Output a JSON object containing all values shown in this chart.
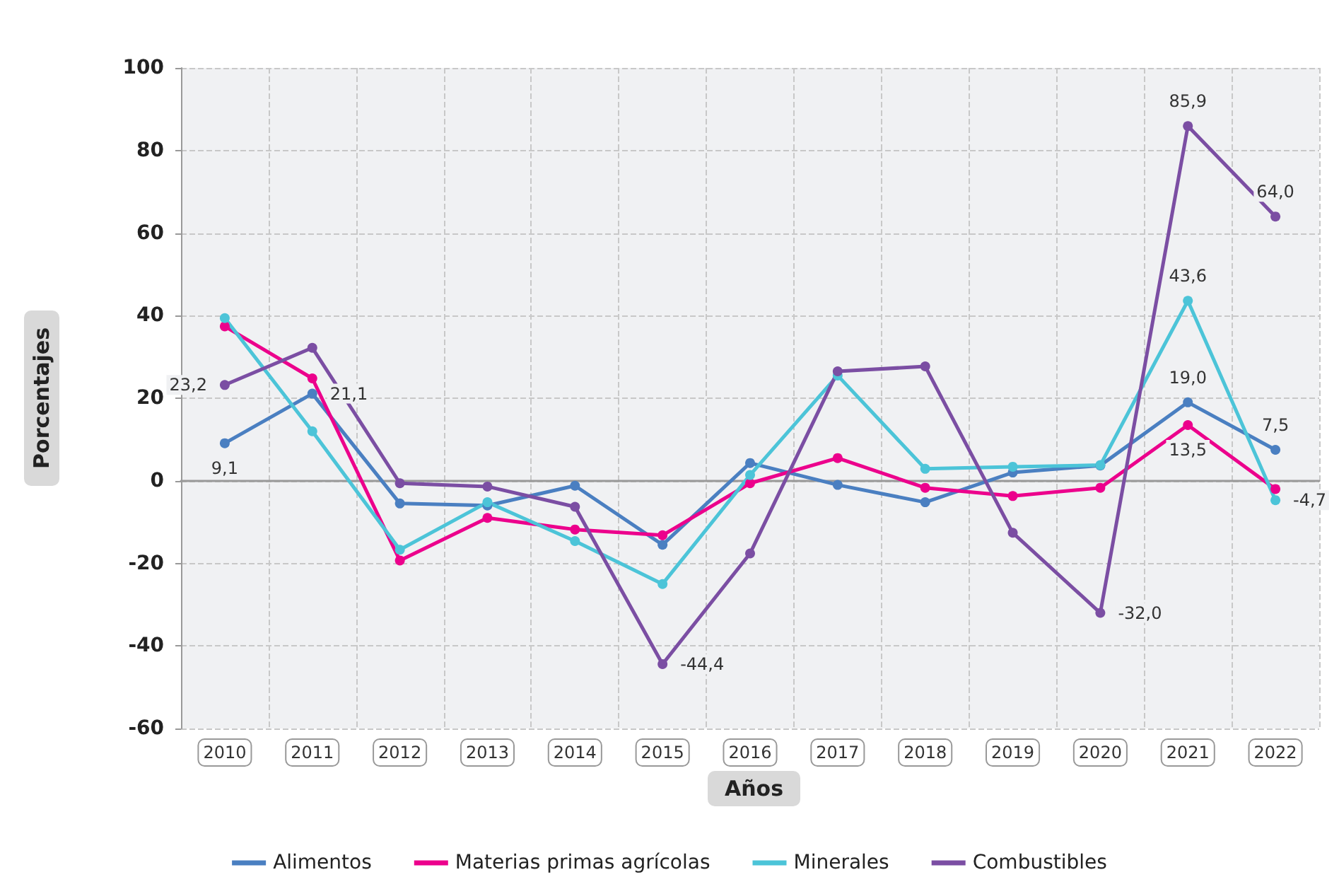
{
  "chart_data": {
    "type": "line",
    "xlabel": "Años",
    "ylabel": "Porcentajes",
    "categories": [
      "2010",
      "2011",
      "2012",
      "2013",
      "2014",
      "2015",
      "2016",
      "2017",
      "2018",
      "2019",
      "2020",
      "2021",
      "2022"
    ],
    "ylim": [
      -60,
      100
    ],
    "yticks": [
      -60,
      -40,
      -20,
      0,
      20,
      40,
      60,
      80,
      100
    ],
    "grid": true,
    "legend": "bottom",
    "marker": "circle",
    "line_style": "solid",
    "series": [
      {
        "name": "Alimentos",
        "color": "#4a7fc1",
        "values": [
          9.1,
          21.1,
          -5.5,
          -6,
          -1.2,
          -15.5,
          4.3,
          -1,
          -5.2,
          2,
          3.7,
          19.0,
          7.5
        ],
        "value_labels": [
          "9,1",
          "21,1",
          null,
          null,
          null,
          null,
          null,
          null,
          null,
          null,
          null,
          "19,0",
          "7,5"
        ]
      },
      {
        "name": "Materias primas agrícolas",
        "color": "#ec008c",
        "values": [
          37.4,
          24.8,
          -19.3,
          -9,
          -11.8,
          -13.2,
          -0.6,
          5.5,
          -1.7,
          -3.7,
          -1.7,
          13.5,
          -2
        ],
        "value_labels": [
          null,
          null,
          null,
          null,
          null,
          null,
          null,
          null,
          null,
          null,
          null,
          "13,5",
          null
        ]
      },
      {
        "name": "Minerales",
        "color": "#4cc4d8",
        "values": [
          39.4,
          12,
          -16.7,
          -5.2,
          -14.6,
          -25,
          1.4,
          25.5,
          2.9,
          3.4,
          3.8,
          43.6,
          -4.7
        ],
        "value_labels": [
          null,
          null,
          null,
          null,
          null,
          null,
          null,
          null,
          null,
          null,
          null,
          "43,6",
          "-4,7"
        ]
      },
      {
        "name": "Combustibles",
        "color": "#7b4ea3",
        "values": [
          23.2,
          32.2,
          -0.6,
          -1.4,
          -6.3,
          -44.4,
          -17.6,
          26.5,
          27.7,
          -12.6,
          -32.0,
          85.9,
          64.0
        ],
        "value_labels": [
          "23,2",
          null,
          null,
          null,
          null,
          "-44,4",
          null,
          null,
          null,
          null,
          "-32,0",
          "85,9",
          "64,0"
        ]
      }
    ]
  }
}
